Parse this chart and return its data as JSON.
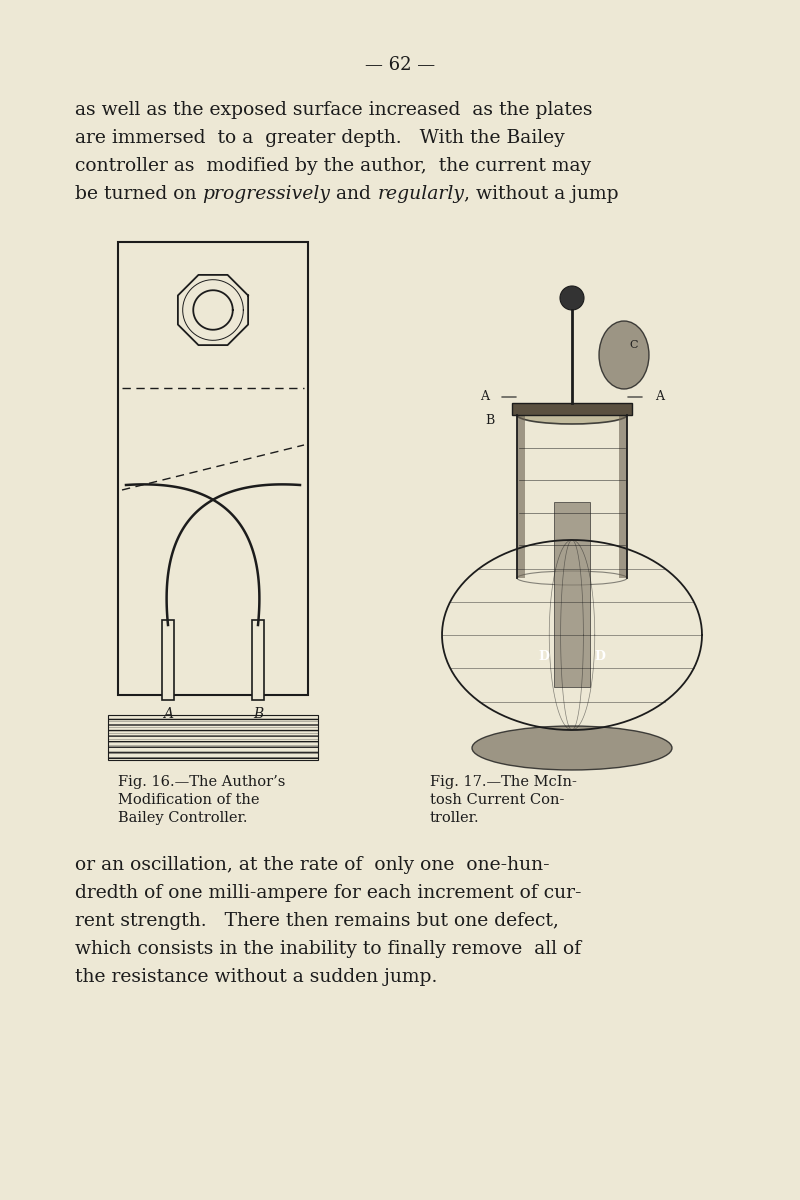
{
  "bg_color": "#ede8d5",
  "text_color": "#1c1c1c",
  "page_number": "— 62 —",
  "page_num_fontsize": 13,
  "top_lines": [
    [
      "as well as the exposed surface increased  as the plates",
      false
    ],
    [
      "are immersed  to a  greater depth.   With the Bailey",
      false
    ],
    [
      "controller as  modified by the author,  the current may",
      false
    ],
    [
      "be turned on ",
      false
    ]
  ],
  "top_line4_parts": [
    [
      "be turned on ",
      false
    ],
    [
      "progressively",
      true
    ],
    [
      " and ",
      false
    ],
    [
      "regularly",
      true
    ],
    [
      ", without a jump",
      false
    ]
  ],
  "bottom_lines": [
    "or an oscillation, at the rate of  only one  one-hun-",
    "dredth of one milli-ampere for each increment of cur-",
    "rent strength.   There then remains but one defect,",
    "which consists in the inability to finally remove  all of",
    "the resistance without a sudden jump."
  ],
  "para_fontsize": 13.5,
  "cap_fontsize": 10.5,
  "fig16_caption": [
    "Fig. 16.—The Author’s",
    "Modification of the",
    "Bailey Controller."
  ],
  "fig17_caption": [
    "Fig. 17.—The McIn-",
    "tosh Current Con-",
    "troller."
  ]
}
